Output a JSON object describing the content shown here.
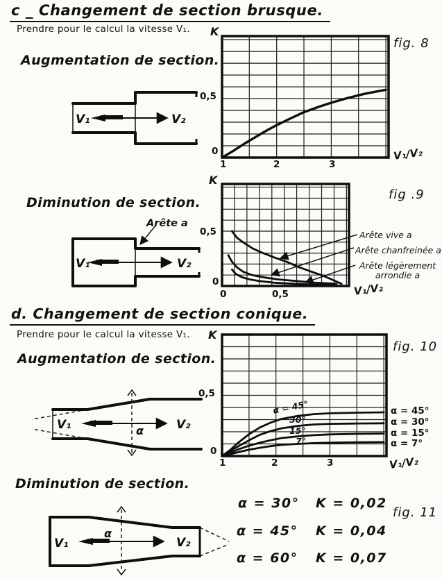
{
  "page": {
    "section_c": {
      "title": "c _ Changement de section brusque.",
      "subtitle": "Prendre pour le calcul la vitesse V₁.",
      "augmentation_label": "Augmentation de section.",
      "diminution_label": "Diminution de section.",
      "arete_callout": "Arête a"
    },
    "section_d": {
      "title": "d. Changement de section conique.",
      "subtitle": "Prendre pour le calcul la vitesse V₁.",
      "augmentation_label": "Augmentation de section.",
      "diminution_label": "Diminution de section."
    },
    "diagrams": {
      "v1": "V₁",
      "v2": "V₂",
      "alpha": "α"
    }
  },
  "chart_data": [
    {
      "id": "fig8",
      "type": "line",
      "title": "fig. 8",
      "fig_label": "fig. 8",
      "xlabel": "V₁/V₂",
      "ylabel": "K",
      "xlim": [
        1,
        4.05
      ],
      "ylim": [
        0,
        1.03
      ],
      "grid_step_x": 0.5,
      "grid_step_y": 0.1,
      "grid": true,
      "xtick_labels": [
        "1",
        "2",
        "3"
      ],
      "ytick_labels": [
        "0",
        "0,5"
      ],
      "series": [
        {
          "name": "K",
          "points": [
            [
              1,
              0
            ],
            [
              1.2,
              0.055
            ],
            [
              1.4,
              0.115
            ],
            [
              1.6,
              0.17
            ],
            [
              1.8,
              0.225
            ],
            [
              2.0,
              0.275
            ],
            [
              2.2,
              0.32
            ],
            [
              2.5,
              0.385
            ],
            [
              2.8,
              0.435
            ],
            [
              3.0,
              0.465
            ],
            [
              3.3,
              0.505
            ],
            [
              3.6,
              0.54
            ],
            [
              4.0,
              0.575
            ]
          ]
        }
      ]
    },
    {
      "id": "fig9",
      "type": "line",
      "title": "fig .9",
      "fig_label": "fig .9",
      "xlabel": "V₁/V₂",
      "ylabel": "K",
      "xlim": [
        0,
        1.02
      ],
      "ylim": [
        0,
        0.93
      ],
      "grid_step_x": 0.1,
      "grid_step_y": 0.1,
      "grid": true,
      "xtick_labels": [
        "0",
        "0,5"
      ],
      "ytick_labels": [
        "0",
        "0,5"
      ],
      "series": [
        {
          "name": "Arête vive a",
          "points": [
            [
              0.08,
              0.5
            ],
            [
              0.12,
              0.44
            ],
            [
              0.18,
              0.39
            ],
            [
              0.25,
              0.34
            ],
            [
              0.33,
              0.3
            ],
            [
              0.42,
              0.26
            ],
            [
              0.52,
              0.22
            ],
            [
              0.62,
              0.17
            ],
            [
              0.72,
              0.13
            ],
            [
              0.82,
              0.09
            ],
            [
              0.9,
              0.05
            ],
            [
              0.96,
              0.02
            ]
          ]
        },
        {
          "name": "Arête chanfreinée a",
          "points": [
            [
              0.05,
              0.28
            ],
            [
              0.08,
              0.22
            ],
            [
              0.12,
              0.17
            ],
            [
              0.17,
              0.13
            ],
            [
              0.24,
              0.1
            ],
            [
              0.33,
              0.08
            ],
            [
              0.45,
              0.06
            ],
            [
              0.6,
              0.045
            ],
            [
              0.75,
              0.03
            ],
            [
              0.92,
              0.02
            ]
          ]
        },
        {
          "name": "Arête légèrement arrondie a",
          "points": [
            [
              0.08,
              0.15
            ],
            [
              0.11,
              0.11
            ],
            [
              0.16,
              0.08
            ],
            [
              0.22,
              0.06
            ],
            [
              0.3,
              0.045
            ],
            [
              0.42,
              0.03
            ],
            [
              0.58,
              0.02
            ],
            [
              0.75,
              0.012
            ],
            [
              0.9,
              0.008
            ]
          ]
        }
      ]
    },
    {
      "id": "fig10",
      "type": "line",
      "title": "fig. 10",
      "fig_label": "fig. 10",
      "xlabel": "V₁/V₂",
      "ylabel": "K",
      "xlim": [
        1,
        4.05
      ],
      "ylim": [
        0,
        1.0
      ],
      "grid_step_x": 0.5,
      "grid_step_y": 0.1,
      "grid": true,
      "xtick_labels": [
        "1",
        "2",
        "3"
      ],
      "ytick_labels": [
        "0",
        "0,5"
      ],
      "inline_labels": [
        "α = 45°",
        "30°",
        "15°",
        "7°"
      ],
      "series": [
        {
          "name": "α = 45°",
          "points": [
            [
              1,
              0
            ],
            [
              1.15,
              0.05
            ],
            [
              1.3,
              0.11
            ],
            [
              1.5,
              0.18
            ],
            [
              1.7,
              0.235
            ],
            [
              1.9,
              0.275
            ],
            [
              2.1,
              0.305
            ],
            [
              2.4,
              0.33
            ],
            [
              2.7,
              0.345
            ],
            [
              3.0,
              0.352
            ],
            [
              3.5,
              0.357
            ],
            [
              4.0,
              0.36
            ]
          ]
        },
        {
          "name": "α = 30°",
          "points": [
            [
              1,
              0
            ],
            [
              1.15,
              0.04
            ],
            [
              1.3,
              0.08
            ],
            [
              1.5,
              0.13
            ],
            [
              1.7,
              0.175
            ],
            [
              1.9,
              0.205
            ],
            [
              2.1,
              0.228
            ],
            [
              2.4,
              0.248
            ],
            [
              2.7,
              0.26
            ],
            [
              3.0,
              0.265
            ],
            [
              3.5,
              0.268
            ],
            [
              4.0,
              0.27
            ]
          ]
        },
        {
          "name": "α = 15°",
          "points": [
            [
              1,
              0
            ],
            [
              1.15,
              0.025
            ],
            [
              1.3,
              0.055
            ],
            [
              1.5,
              0.085
            ],
            [
              1.7,
              0.11
            ],
            [
              1.9,
              0.13
            ],
            [
              2.1,
              0.148
            ],
            [
              2.4,
              0.162
            ],
            [
              2.7,
              0.172
            ],
            [
              3.0,
              0.178
            ],
            [
              3.5,
              0.183
            ],
            [
              4.0,
              0.185
            ]
          ]
        },
        {
          "name": "α = 7°",
          "points": [
            [
              1,
              0
            ],
            [
              1.15,
              0.015
            ],
            [
              1.3,
              0.032
            ],
            [
              1.5,
              0.052
            ],
            [
              1.7,
              0.068
            ],
            [
              1.9,
              0.082
            ],
            [
              2.1,
              0.092
            ],
            [
              2.4,
              0.1
            ],
            [
              2.7,
              0.106
            ],
            [
              3.0,
              0.11
            ],
            [
              3.5,
              0.113
            ],
            [
              4.0,
              0.115
            ]
          ]
        }
      ]
    },
    {
      "id": "fig11",
      "type": "table",
      "title": "fig. 11",
      "fig_label": "fig. 11",
      "rows": [
        {
          "alpha": "α = 30°",
          "k": "K = 0,02"
        },
        {
          "alpha": "α = 45°",
          "k": "K = 0,04"
        },
        {
          "alpha": "α = 60°",
          "k": "K = 0,07"
        }
      ]
    }
  ]
}
